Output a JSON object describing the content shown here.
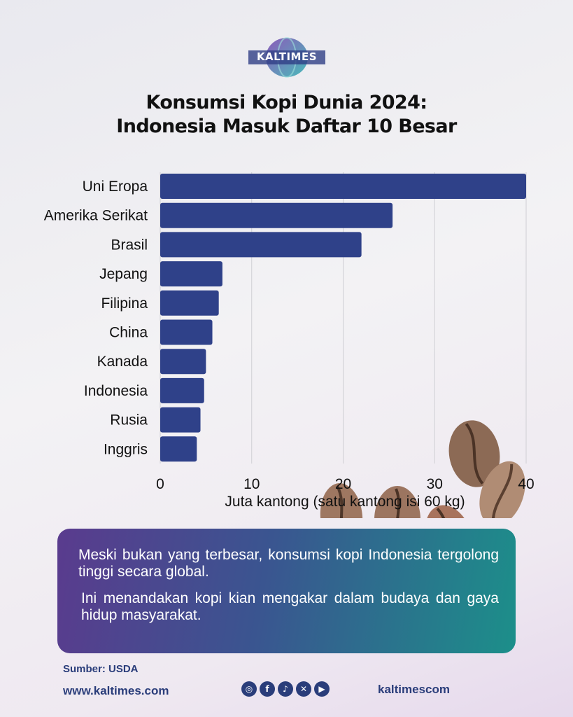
{
  "brand": {
    "logo_text": "KALTIMES"
  },
  "title_line1": "Konsumsi Kopi Dunia 2024:",
  "title_line2": "Indonesia Masuk Daftar 10 Besar",
  "chart_data": {
    "type": "bar",
    "orientation": "horizontal",
    "categories": [
      "Uni Eropa",
      "Amerika Serikat",
      "Brasil",
      "Jepang",
      "Filipina",
      "China",
      "Kanada",
      "Indonesia",
      "Rusia",
      "Inggris"
    ],
    "values": [
      40,
      25.4,
      22,
      6.8,
      6.4,
      5.7,
      5.0,
      4.8,
      4.4,
      4.0
    ],
    "xlabel": "Juta kantong (satu kantong isi 60 kg)",
    "xticks": [
      0,
      10,
      20,
      30,
      40
    ],
    "xlim": [
      0,
      40
    ],
    "grid": true,
    "bar_color": "#2f4189"
  },
  "info": {
    "p1": "Meski bukan yang terbesar, konsumsi kopi Indonesia tergolong tinggi secara global.",
    "p2": "Ini menandakan kopi kian mengakar dalam budaya dan gaya hidup masyarakat."
  },
  "footer": {
    "source": "Sumber: USDA",
    "website": "www.kaltimes.com",
    "handle": "kaltimescom",
    "social_icons": [
      "instagram-icon",
      "facebook-icon",
      "tiktok-icon",
      "x-icon",
      "youtube-icon"
    ]
  }
}
